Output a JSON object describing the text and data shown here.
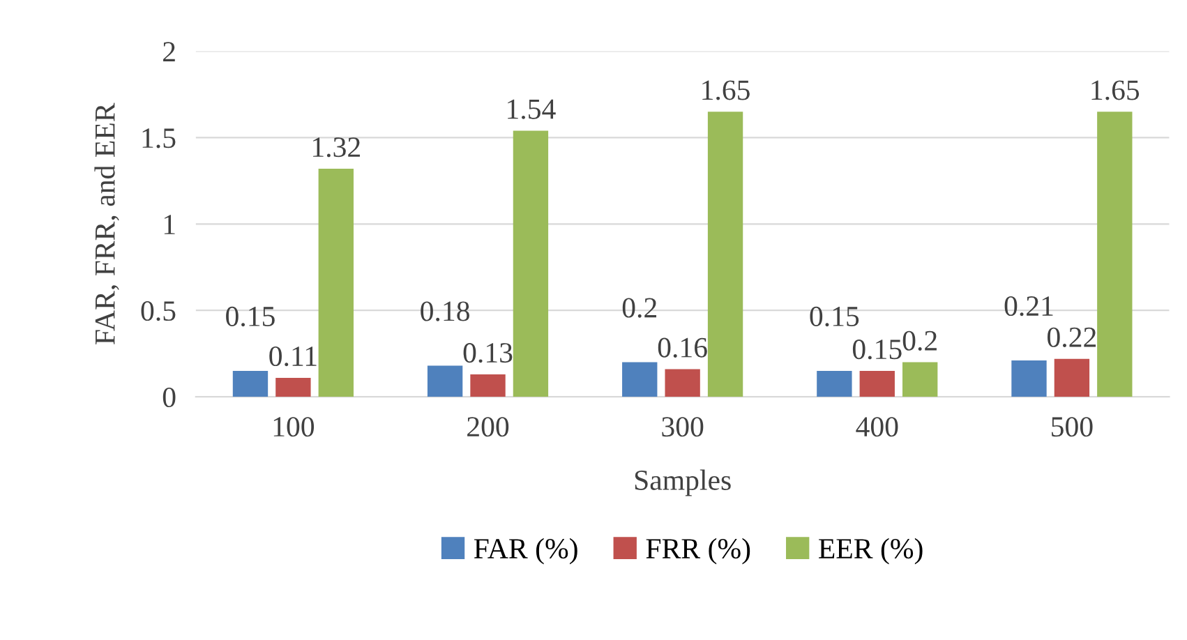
{
  "chart_data": {
    "type": "bar",
    "xlabel": "Samples",
    "ylabel": "FAR, FRR, and EER",
    "categories": [
      "100",
      "200",
      "300",
      "400",
      "500"
    ],
    "series": [
      {
        "name": "FAR (%)",
        "color": "#4f81bd",
        "values": [
          0.15,
          0.18,
          0.2,
          0.15,
          0.21
        ]
      },
      {
        "name": "FRR (%)",
        "color": "#c0504d",
        "values": [
          0.11,
          0.13,
          0.16,
          0.15,
          0.22
        ]
      },
      {
        "name": "EER (%)",
        "color": "#9bbb59",
        "values": [
          1.32,
          1.54,
          1.65,
          0.2,
          1.65
        ]
      }
    ],
    "ylim": [
      0,
      2
    ],
    "yticks": [
      0,
      0.5,
      1,
      1.5,
      2
    ],
    "grid": "y",
    "legend": "bottom",
    "data_labels": true
  }
}
